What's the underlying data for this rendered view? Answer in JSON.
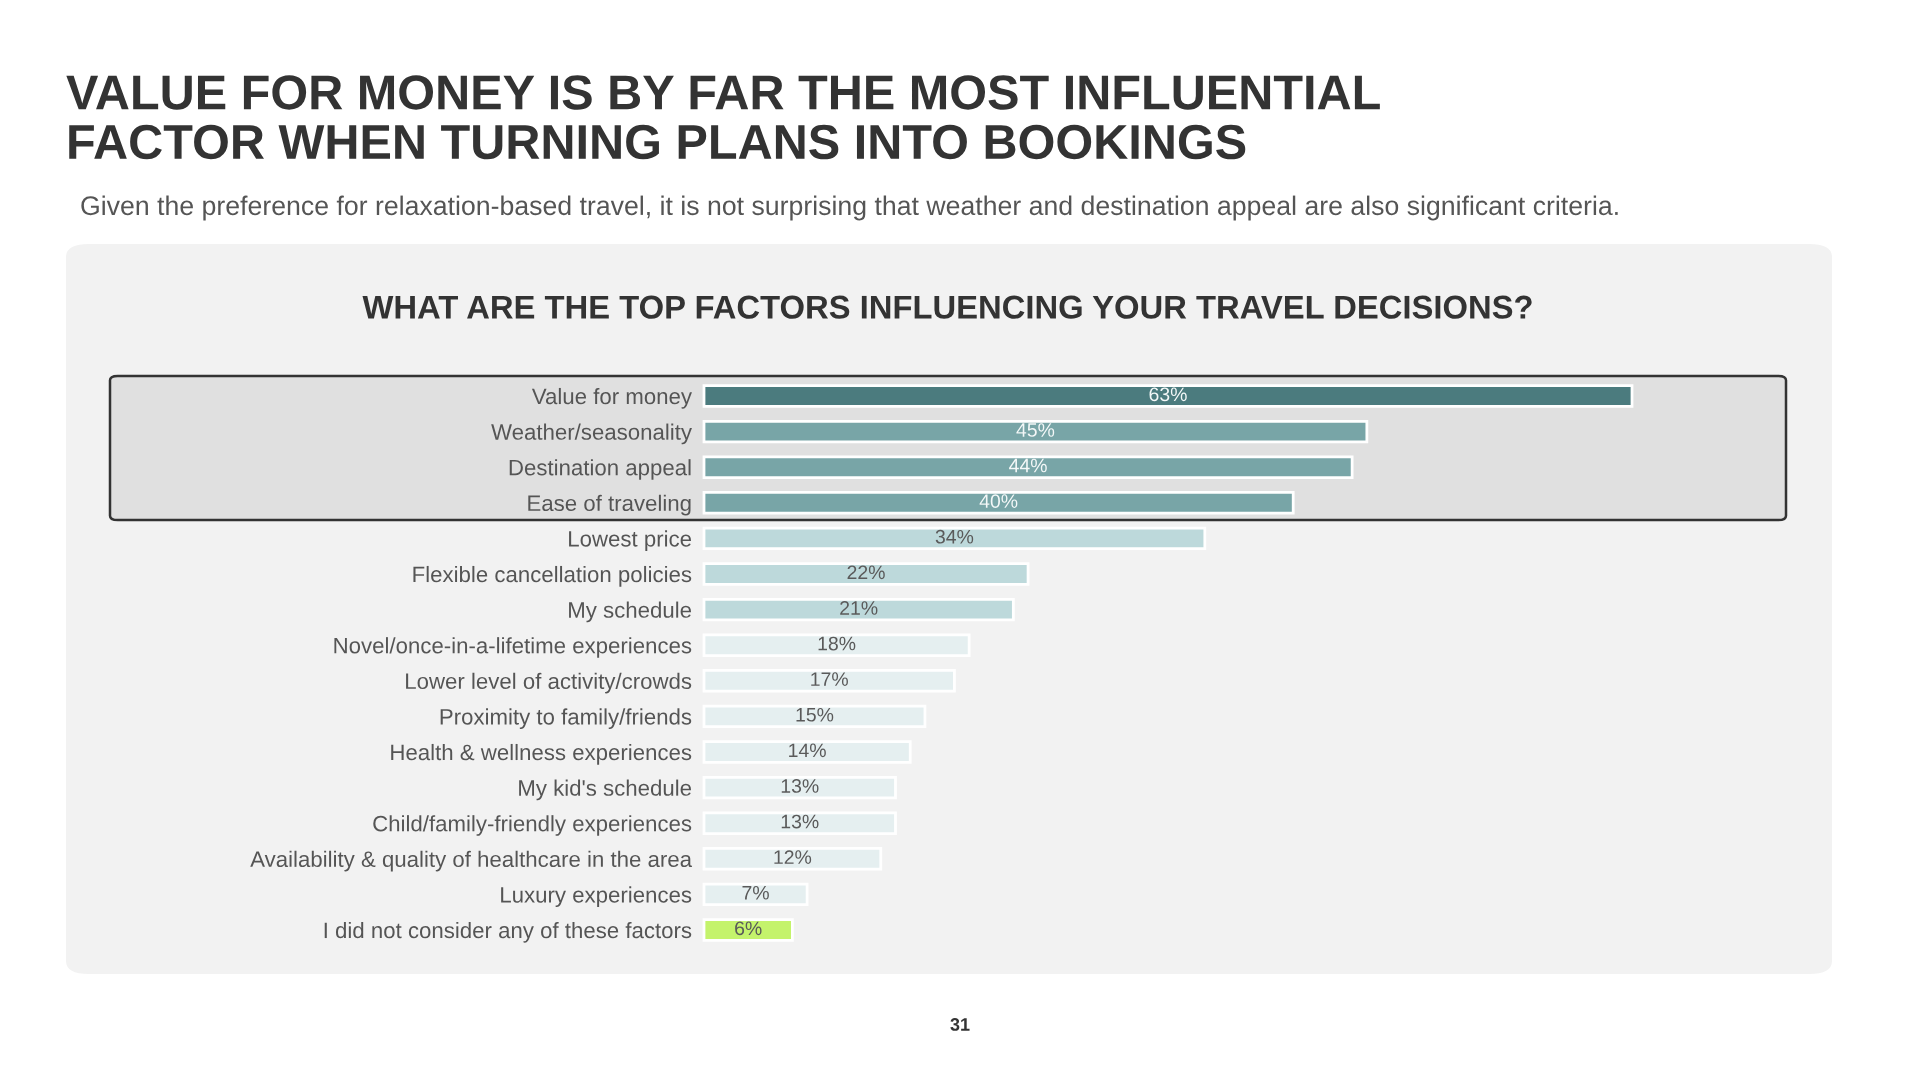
{
  "chart_data": {
    "type": "bar",
    "orientation": "horizontal",
    "tick_labels": "y",
    "title": "VALUE FOR MONEY IS BY FAR THE MOST INFLUENTIAL\nFACTOR WHEN TURNING PLANS INTO BOOKINGS",
    "subtitle": "Given the preference for relaxation-based travel, it is not surprising that weather and destination appeal are also significant criteria.",
    "annotations": [
      "WHAT ARE THE TOP FACTORS INFLUENCING YOUR TRAVEL DECISIONS?",
      "31"
    ],
    "categories": [
      "Value for money",
      "Weather/seasonality",
      "Destination appeal",
      "Ease of traveling",
      "Lowest price",
      "Flexible cancellation policies",
      "My schedule",
      "Novel/once-in-a-lifetime experiences",
      "Lower level of activity/crowds",
      "Proximity to family/friends",
      "Health & wellness experiences",
      "My kid's schedule",
      "Child/family-friendly experiences",
      "Availability & quality of healthcare in the area",
      "Luxury experiences",
      "I did not consider any of these factors"
    ],
    "values": [
      63,
      45,
      44,
      40,
      34,
      22,
      21,
      18,
      17,
      15,
      14,
      13,
      13,
      12,
      7,
      6
    ],
    "value_labels": [
      "63%",
      "45%",
      "44%",
      "40%",
      "34%",
      "22%",
      "21%",
      "18%",
      "17%",
      "15%",
      "14%",
      "13%",
      "13%",
      "12%",
      "7%",
      "6%"
    ],
    "colors": [
      "#4b7b7e",
      "#78a5a7",
      "#78a5a7",
      "#78a5a7",
      "#bdd9db",
      "#bdd9db",
      "#bdd9db",
      "#e5eff0",
      "#e5eff0",
      "#e5eff0",
      "#e5eff0",
      "#e5eff0",
      "#e5eff0",
      "#e5eff0",
      "#e5eff0",
      "#c4f36c"
    ]
  }
}
